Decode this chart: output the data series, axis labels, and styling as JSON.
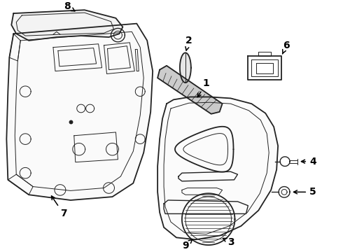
{
  "bg_color": "#ffffff",
  "line_color": "#222222",
  "label_color": "#000000",
  "lw_main": 1.3,
  "lw_thin": 0.7,
  "lw_med": 1.0
}
